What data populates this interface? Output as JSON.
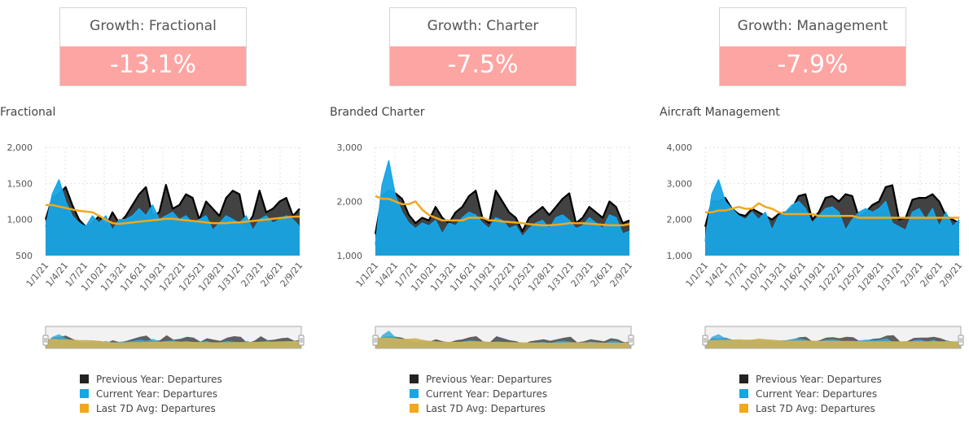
{
  "kpis": [
    {
      "title": "Growth: Fractional",
      "value": "-13.1%"
    },
    {
      "title": "Growth: Charter",
      "value": "-7.5%"
    },
    {
      "title": "Growth: Management",
      "value": "-7.9%"
    }
  ],
  "colors": {
    "previous_year": "#222222",
    "current_year": "#19a4e3",
    "last_7d_avg": "#f2a81d",
    "kpi_background": "#fca5a3",
    "navigator_fill": "#c9b25a"
  },
  "legend": [
    {
      "label": "Previous Year: Departures",
      "color": "#222222"
    },
    {
      "label": "Current Year: Departures",
      "color": "#19a4e3"
    },
    {
      "label": "Last 7D Avg: Departures",
      "color": "#f2a81d"
    }
  ],
  "chart_data": [
    {
      "type": "area",
      "title": "Fractional",
      "x_tick_labels": [
        "1/1/21",
        "1/4/21",
        "1/7/21",
        "1/10/21",
        "1/13/21",
        "1/16/21",
        "1/19/21",
        "1/22/21",
        "1/25/21",
        "1/28/21",
        "1/31/21",
        "2/3/21",
        "2/6/21",
        "2/9/21"
      ],
      "y_tick_labels": [
        "2,000",
        "1,500",
        "1,000",
        "500"
      ],
      "ylim": [
        500,
        2000
      ],
      "grid": true,
      "legend_position": "bottom",
      "series": [
        {
          "name": "Previous Year: Departures",
          "color": "#222222",
          "values": [
            1000,
            1300,
            1350,
            1450,
            1200,
            1000,
            900,
            950,
            1050,
            900,
            1100,
            950,
            1050,
            1200,
            1350,
            1450,
            1050,
            1100,
            1480,
            1150,
            1200,
            1350,
            1300,
            1000,
            1250,
            1150,
            1050,
            1300,
            1400,
            1350,
            900,
            1050,
            1400,
            1100,
            1150,
            1250,
            1300,
            1050,
            1150
          ]
        },
        {
          "name": "Current Year: Departures",
          "color": "#19a4e3",
          "values": [
            900,
            1350,
            1550,
            1250,
            1050,
            950,
            900,
            1050,
            950,
            1050,
            850,
            1000,
            1000,
            1050,
            1150,
            1050,
            1200,
            1000,
            1050,
            1100,
            1000,
            1050,
            950,
            1000,
            1050,
            850,
            950,
            1050,
            1000,
            950,
            1050,
            850,
            1000,
            1050,
            950,
            1000,
            1050,
            1000,
            900
          ]
        },
        {
          "name": "Last 7D Avg: Departures",
          "color": "#f2a81d",
          "values": [
            1200,
            1200,
            1180,
            1160,
            1140,
            1120,
            1110,
            1100,
            1050,
            1000,
            950,
            940,
            950,
            960,
            970,
            980,
            990,
            1000,
            1010,
            1010,
            1000,
            990,
            980,
            970,
            960,
            950,
            950,
            950,
            960,
            960,
            970,
            980,
            990,
            1000,
            1010,
            1020,
            1030,
            1040,
            1040
          ]
        }
      ]
    },
    {
      "type": "area",
      "title": "Branded Charter",
      "x_tick_labels": [
        "1/1/21",
        "1/4/21",
        "1/7/21",
        "1/10/21",
        "1/13/21",
        "1/16/21",
        "1/19/21",
        "1/22/21",
        "1/25/21",
        "1/28/21",
        "1/31/21",
        "2/3/21",
        "2/6/21",
        "2/9/21"
      ],
      "y_tick_labels": [
        "3,000",
        "2,000",
        "1,000"
      ],
      "ylim": [
        1000,
        3000
      ],
      "grid": true,
      "legend_position": "bottom",
      "series": [
        {
          "name": "Previous Year: Departures",
          "color": "#222222",
          "values": [
            1400,
            2100,
            2200,
            2150,
            2050,
            1750,
            1600,
            1700,
            1650,
            1900,
            1700,
            1600,
            1800,
            1900,
            2100,
            2200,
            1700,
            1600,
            2200,
            2000,
            1800,
            1700,
            1450,
            1700,
            1800,
            1900,
            1750,
            1900,
            2050,
            2150,
            1600,
            1700,
            1900,
            1800,
            1700,
            2000,
            1900,
            1600,
            1650
          ]
        },
        {
          "name": "Current Year: Departures",
          "color": "#19a4e3",
          "values": [
            1200,
            2300,
            2750,
            2100,
            1800,
            1600,
            1500,
            1600,
            1550,
            1650,
            1400,
            1600,
            1550,
            1700,
            1800,
            1750,
            1600,
            1500,
            1700,
            1650,
            1500,
            1550,
            1350,
            1500,
            1600,
            1650,
            1500,
            1700,
            1750,
            1650,
            1500,
            1550,
            1700,
            1600,
            1500,
            1750,
            1700,
            1400,
            1450
          ]
        },
        {
          "name": "Last 7D Avg: Departures",
          "color": "#f2a81d",
          "values": [
            2100,
            2050,
            2050,
            2000,
            1950,
            1950,
            2000,
            1850,
            1750,
            1700,
            1650,
            1650,
            1650,
            1650,
            1700,
            1700,
            1700,
            1650,
            1650,
            1630,
            1620,
            1610,
            1600,
            1580,
            1570,
            1560,
            1560,
            1570,
            1580,
            1600,
            1600,
            1600,
            1590,
            1580,
            1570,
            1560,
            1560,
            1560,
            1580
          ]
        }
      ]
    },
    {
      "type": "area",
      "title": "Aircraft Management",
      "x_tick_labels": [
        "1/1/21",
        "1/4/21",
        "1/7/21",
        "1/10/21",
        "1/13/21",
        "1/16/21",
        "1/19/21",
        "1/22/21",
        "1/25/21",
        "1/28/21",
        "1/31/21",
        "2/3/21",
        "2/6/21",
        "2/9/21"
      ],
      "y_tick_labels": [
        "4,000",
        "3,000",
        "2,000",
        "1,000"
      ],
      "ylim": [
        1000,
        4000
      ],
      "grid": true,
      "legend_position": "bottom",
      "series": [
        {
          "name": "Previous Year: Departures",
          "color": "#222222",
          "values": [
            1800,
            2500,
            2500,
            2600,
            2300,
            2150,
            2100,
            2300,
            2200,
            2100,
            2000,
            2150,
            2200,
            2300,
            2650,
            2700,
            2000,
            2200,
            2600,
            2650,
            2500,
            2700,
            2650,
            2050,
            2200,
            2400,
            2500,
            2900,
            2950,
            2000,
            2050,
            2550,
            2600,
            2600,
            2700,
            2500,
            2100,
            2000,
            1900
          ]
        },
        {
          "name": "Current Year: Departures",
          "color": "#19a4e3",
          "values": [
            1400,
            2700,
            3100,
            2500,
            2300,
            2100,
            2000,
            2200,
            2000,
            2200,
            1700,
            2100,
            2200,
            2400,
            2500,
            2300,
            1900,
            2100,
            2300,
            2350,
            2200,
            1700,
            2000,
            2200,
            2300,
            2200,
            2300,
            2500,
            1900,
            1800,
            1700,
            2200,
            2300,
            2000,
            2300,
            1800,
            2200,
            1800,
            2000
          ]
        },
        {
          "name": "Last 7D Avg: Departures",
          "color": "#f2a81d",
          "values": [
            2200,
            2200,
            2250,
            2250,
            2300,
            2350,
            2300,
            2300,
            2450,
            2350,
            2300,
            2200,
            2150,
            2150,
            2150,
            2150,
            2150,
            2100,
            2100,
            2100,
            2100,
            2100,
            2100,
            2050,
            2050,
            2050,
            2050,
            2050,
            2050,
            2050,
            2050,
            2050,
            2050,
            2050,
            2050,
            2050,
            2050,
            2050,
            2050
          ]
        }
      ]
    }
  ]
}
